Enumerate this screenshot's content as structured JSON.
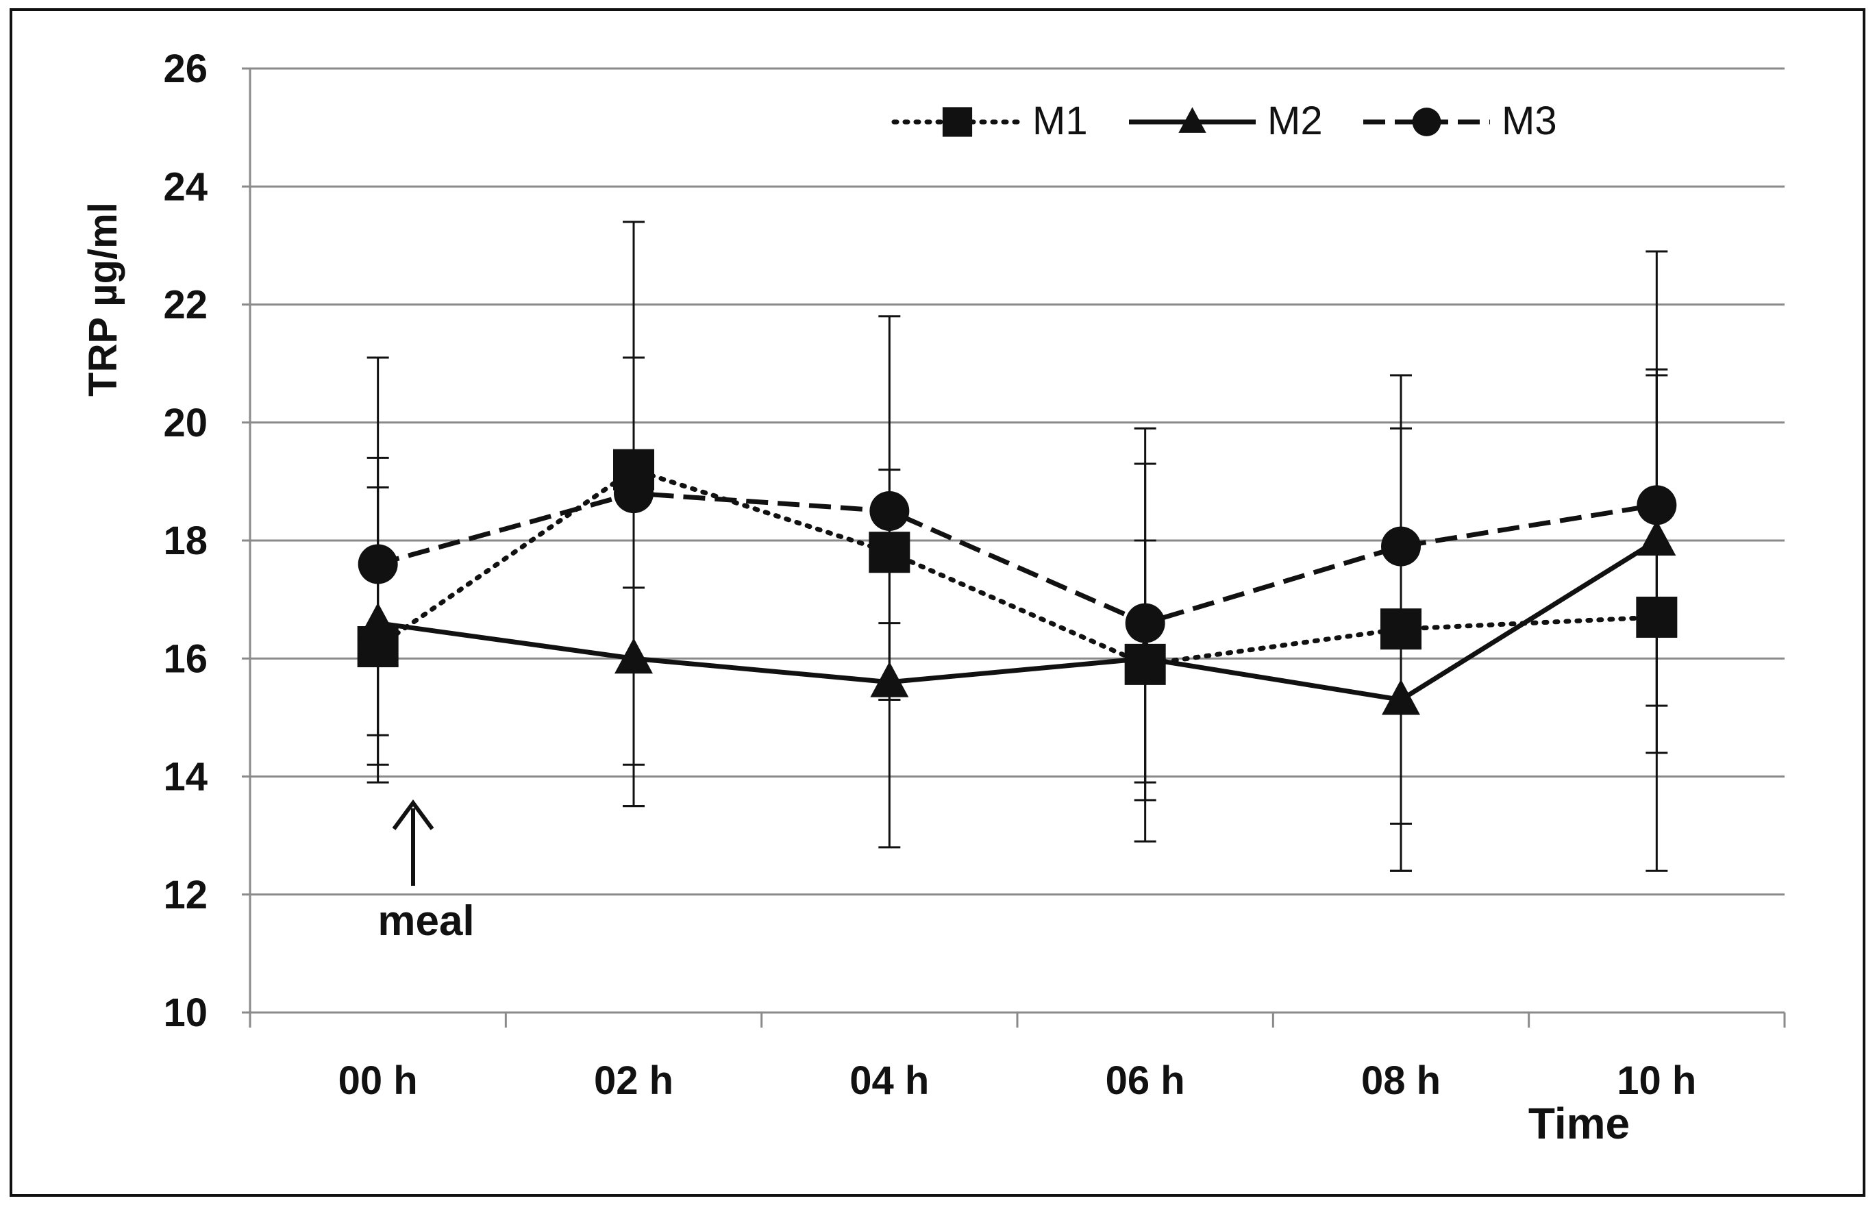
{
  "chart_data": {
    "type": "line",
    "title": "",
    "xlabel": "Time",
    "ylabel": "TRP µg/ml",
    "categories": [
      "00 h",
      "02 h",
      "04 h",
      "06 h",
      "08 h",
      "10 h"
    ],
    "ylim": [
      10,
      26
    ],
    "yticks": [
      10,
      12,
      14,
      16,
      18,
      20,
      22,
      24,
      26
    ],
    "grid": true,
    "legend_position": "top-right",
    "series": [
      {
        "name": "M1",
        "line": "dotted",
        "marker": "square",
        "values": [
          16.2,
          19.2,
          17.8,
          15.9,
          16.5,
          16.7
        ],
        "err_high": [
          19.4,
          21.1,
          19.2,
          19.3,
          19.9,
          20.8
        ],
        "err_low": [
          14.2,
          13.5,
          15.3,
          13.6,
          12.4,
          12.4
        ]
      },
      {
        "name": "M2",
        "line": "solid",
        "marker": "triangle",
        "values": [
          16.6,
          16.0,
          15.6,
          16.0,
          15.3,
          18.0
        ],
        "err_high": [
          18.9,
          17.2,
          16.6,
          18.0,
          18.1,
          20.9
        ],
        "err_low": [
          14.7,
          14.2,
          15.3,
          13.9,
          13.2,
          15.2
        ]
      },
      {
        "name": "M3",
        "line": "dashed",
        "marker": "circle",
        "values": [
          17.6,
          18.8,
          18.5,
          16.6,
          17.9,
          18.6
        ],
        "err_high": [
          21.1,
          23.4,
          21.8,
          19.9,
          20.8,
          22.9
        ],
        "err_low": [
          13.9,
          13.5,
          12.8,
          12.9,
          12.4,
          14.4
        ]
      }
    ],
    "annotations": [
      {
        "text": "meal",
        "category": "00 h",
        "arrow": "up"
      }
    ]
  }
}
